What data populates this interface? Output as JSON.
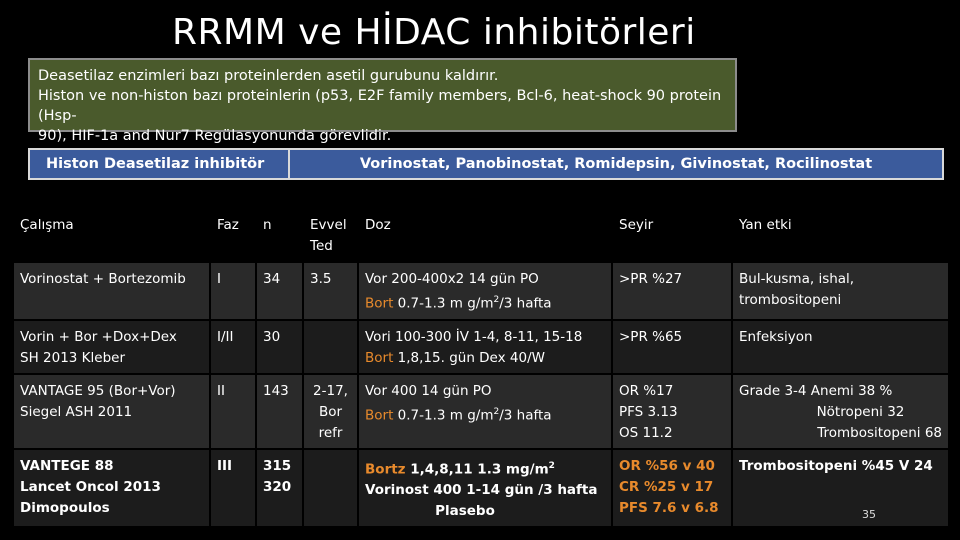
{
  "slide": {
    "title": "RRMM ve HİDAC inhibitörleri",
    "intro_lines": [
      "Deasetilaz enzimleri bazı proteinlerden asetil gurubunu kaldırır.",
      "Histon ve non-histon bazı proteinlerin (p53, E2F family members, Bcl-6, heat-shock 90 protein (Hsp-",
      "90), HIF-1a and Nur7 Regülasyonunda görevlidir."
    ],
    "hdac_label": "Histon Deasetilaz inhibitör",
    "hdac_drugs": "Vorinostat, Panobinostat, Romidepsin, Givinostat, Rocilinostat",
    "page_number": "35"
  },
  "table": {
    "headers": {
      "study": "Çalışma",
      "phase": "Faz",
      "n": "n",
      "prior_line_1": "Evvel",
      "prior_line_2": "Ted",
      "dose": "Doz",
      "outcome": "Seyir",
      "side_effect": "Yan etki"
    },
    "rows": [
      {
        "study_1": "Vorinostat + Bortezomib",
        "study_2": "",
        "phase": "I",
        "n_1": "34",
        "n_2": "",
        "prior_1": "3.5",
        "prior_2": "",
        "prior_3": "",
        "dose_1": "Vor 200-400x2 14 gün PO",
        "dose_2_drug": "Bort",
        "dose_2_rest": " 0.7-1.3 m g/m",
        "dose_2_sup": "2",
        "dose_2_tail": "/3 hafta",
        "outcome_1": ">PR %27",
        "outcome_2": "",
        "outcome_3": "",
        "side_1": "Bul-kusma, ishal,",
        "side_2": "trombositopeni",
        "side_3": ""
      },
      {
        "study_1": "Vorin + Bor +Dox+Dex",
        "study_2": "SH 2013 Kleber",
        "phase": "I/II",
        "n_1": "30",
        "n_2": "",
        "prior_1": "",
        "prior_2": "",
        "prior_3": "",
        "dose_1": "Vori 100-300 İV 1-4, 8-11, 15-18",
        "dose_2_drug": "Bort",
        "dose_2_rest": " 1,8,15. gün Dex 40/W",
        "dose_2_sup": "",
        "dose_2_tail": "",
        "outcome_1": ">PR %65",
        "outcome_2": "",
        "outcome_3": "",
        "side_1": "Enfeksiyon",
        "side_2": "",
        "side_3": ""
      },
      {
        "study_1": "VANTAGE 95 (Bor+Vor)",
        "study_2": "Siegel ASH 2011",
        "phase": "II",
        "n_1": "143",
        "n_2": "",
        "prior_1": "2-17,",
        "prior_2": "Bor",
        "prior_3": "refr",
        "dose_1": "Vor 400  14 gün PO",
        "dose_2_drug": "Bort",
        "dose_2_rest": " 0.7-1.3 m g/m",
        "dose_2_sup": "2",
        "dose_2_tail": "/3 hafta",
        "outcome_1": "OR %17",
        "outcome_2": "PFS 3.13",
        "outcome_3": "OS 11.2",
        "side_1": "Grade 3-4 Anemi 38 %",
        "side_2": "Nötropeni 32",
        "side_3": "Trombositopeni 68"
      },
      {
        "study_1": "VANTEGE 88",
        "study_2": "Lancet Oncol 2013",
        "study_3": "Dimopoulos",
        "phase": "III",
        "n_1": "315",
        "n_2": "320",
        "dose_1_drug": "Bortz",
        "dose_1_rest": " 1,4,8,11 1.3 mg/m",
        "dose_1_sup": "2",
        "dose_2": "Vorinost 400 1-14  gün  /3 hafta",
        "dose_3": "Plasebo",
        "outcome_1": "OR %56 v 40",
        "outcome_2": "CR %25 v 17",
        "outcome_3": "PFS 7.6 v 6.8",
        "side_1": "Trombositopeni %45 V 24"
      }
    ]
  }
}
